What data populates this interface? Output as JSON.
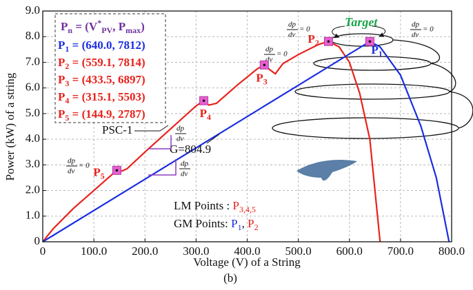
{
  "chart_data": {
    "type": "line",
    "title": "(b)",
    "x_label": "Voltage (V) of a String",
    "y_label": "Power (kW) of a string",
    "xlim": [
      0,
      800
    ],
    "ylim": [
      0,
      9
    ],
    "xticks": [
      0,
      {
        "value": 100,
        "label": "100.0"
      },
      {
        "value": 200,
        "label": "200.0"
      },
      {
        "value": 300,
        "label": "300.0"
      },
      {
        "value": 400,
        "label": "400.0"
      },
      {
        "value": 500,
        "label": "500.0"
      },
      {
        "value": 600,
        "label": "600.0"
      },
      {
        "value": 700,
        "label": "700.0"
      },
      {
        "value": 800,
        "label": "800.0"
      }
    ],
    "yticks": [
      0,
      {
        "value": 1,
        "label": "1.0"
      },
      {
        "value": 2,
        "label": "2.0"
      },
      {
        "value": 3,
        "label": "3.0"
      },
      {
        "value": 4,
        "label": "4.0"
      },
      {
        "value": 5,
        "label": "5.0"
      },
      {
        "value": 6,
        "label": "6.0"
      },
      {
        "value": 7,
        "label": "7.0"
      },
      {
        "value": 8,
        "label": "8.0"
      },
      {
        "value": 9,
        "label": "9.0"
      }
    ],
    "grid": true,
    "series": [
      {
        "name": "PSC-1",
        "color": "#e8221b",
        "x": [
          0,
          20,
          60,
          100,
          144.9,
          155,
          165,
          200,
          250,
          300,
          315.1,
          325,
          340,
          380,
          420,
          433.5,
          445,
          455,
          470,
          500,
          540,
          559.1,
          580,
          600,
          620,
          640,
          660
        ],
        "values": [
          0,
          0.5,
          1.3,
          2.0,
          2.787,
          2.76,
          2.85,
          3.5,
          4.4,
          5.3,
          5.503,
          5.33,
          5.4,
          6.1,
          6.75,
          6.897,
          6.7,
          6.55,
          6.95,
          7.3,
          7.7,
          7.814,
          7.6,
          7.0,
          5.8,
          4.0,
          0
        ]
      },
      {
        "name": "G=804.9",
        "color": "#1a2ee0",
        "x": [
          0,
          640,
          660,
          700,
          740,
          770,
          795
        ],
        "values": [
          0,
          7.812,
          7.6,
          6.5,
          4.5,
          2.5,
          0
        ]
      }
    ],
    "points": [
      {
        "name": "P",
        "sub": "1",
        "x": 640.0,
        "y": 7.812,
        "color": "#1a2ee0"
      },
      {
        "name": "P",
        "sub": "2",
        "x": 559.1,
        "y": 7.814,
        "color": "#e8221b"
      },
      {
        "name": "P",
        "sub": "3",
        "x": 433.5,
        "y": 6.897,
        "color": "#e8221b"
      },
      {
        "name": "P",
        "sub": "4",
        "x": 315.1,
        "y": 5.503,
        "color": "#e8221b"
      },
      {
        "name": "P",
        "sub": "5",
        "x": 144.9,
        "y": 2.787,
        "color": "#e8221b"
      }
    ],
    "legend": {
      "header_parts": [
        "P",
        "n",
        " = (V",
        "*",
        "PV",
        ", P",
        "max",
        ")"
      ],
      "header_color": "#7030a0",
      "entries": [
        {
          "name": "P",
          "sub": "1",
          "text": " = (640.0, 7812)",
          "color": "#1a2ee0"
        },
        {
          "name": "P",
          "sub": "2",
          "text": " = (559.1, 7814)",
          "color": "#e8221b"
        },
        {
          "name": "P",
          "sub": "3",
          "text": " = (433.5, 6897)",
          "color": "#e8221b"
        },
        {
          "name": "P",
          "sub": "4",
          "text": " = (315.1, 5503)",
          "color": "#e8221b"
        },
        {
          "name": "P",
          "sub": "5",
          "text": " = (144.9, 2787)",
          "color": "#e8221b"
        }
      ]
    },
    "annotations": {
      "target": "Target",
      "psc": "PSC-1",
      "g": "G=804.9",
      "dp": "dp",
      "dv": "dv",
      "eq0": "= 0",
      "lm_label": "LM Points : ",
      "lm_p": "P",
      "lm_sub": "3,4,5",
      "gm_label": "GM Points: ",
      "gm_p1": "P",
      "gm_sub1": "1",
      "gm_sep": ", ",
      "gm_p2": "P",
      "gm_sub2": "2"
    }
  }
}
